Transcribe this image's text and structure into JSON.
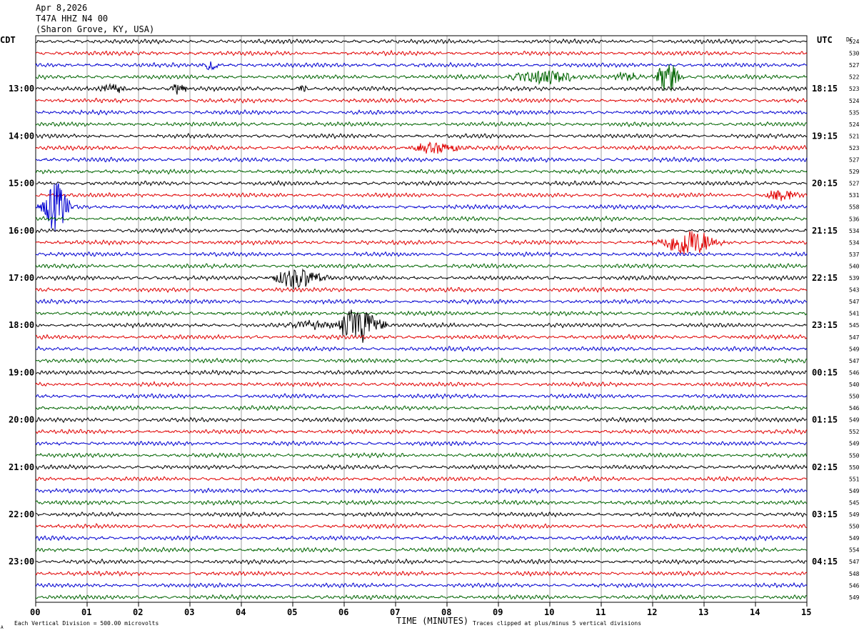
{
  "header": {
    "date": "Apr 8,2026",
    "station": "T47A HHZ N4 00",
    "location": "(Sharon Grove, KY, USA)"
  },
  "labels": {
    "left_tz": "CDT",
    "right_tz": "UTC",
    "dc": "DC",
    "xlabel": "TIME (MINUTES)",
    "footer_left": "Each Vertical Division =  500.00 microvolts",
    "footer_right": "Traces clipped at plus/minus 5 vertical divisions",
    "corner_mark": "A"
  },
  "chart_data": {
    "type": "line",
    "subtype": "helicorder",
    "x_ticks": [
      "00",
      "01",
      "02",
      "03",
      "04",
      "05",
      "06",
      "07",
      "08",
      "09",
      "10",
      "11",
      "12",
      "13",
      "14",
      "15"
    ],
    "xlim": [
      0,
      15
    ],
    "left_hour_labels": [
      "13:00",
      "14:00",
      "15:00",
      "16:00",
      "17:00",
      "18:00",
      "19:00",
      "20:00",
      "21:00",
      "22:00",
      "23:00"
    ],
    "right_hour_labels": [
      "18:15",
      "19:15",
      "20:15",
      "21:15",
      "22:15",
      "23:15",
      "00:15",
      "01:15",
      "02:15",
      "03:15",
      "04:15"
    ],
    "hour_label_first_row": 4,
    "rows_per_hour": 4,
    "dc_values": [
      524,
      530,
      527,
      522,
      523,
      524,
      535,
      524,
      521,
      523,
      527,
      529,
      527,
      531,
      558,
      536,
      534,
      534,
      537,
      540,
      539,
      543,
      547,
      541,
      545,
      547,
      549,
      547,
      546,
      540,
      550,
      546,
      549,
      552,
      549,
      550,
      550,
      551,
      549,
      545,
      549,
      550,
      549,
      554,
      547,
      548,
      546,
      549
    ],
    "trace_colors": [
      "#000000",
      "#e00000",
      "#0000d0",
      "#006400"
    ],
    "vertical_division_microvolts": 500.0,
    "clip_divisions": 5,
    "events": [
      {
        "row": 2,
        "minute": 3.4,
        "amp": 1.6,
        "dur": 0.3
      },
      {
        "row": 3,
        "minute": 9.9,
        "amp": 2.2,
        "dur": 1.5
      },
      {
        "row": 3,
        "minute": 11.5,
        "amp": 1.6,
        "dur": 0.6
      },
      {
        "row": 3,
        "minute": 12.3,
        "amp": 6.0,
        "dur": 0.5
      },
      {
        "row": 4,
        "minute": 1.5,
        "amp": 1.4,
        "dur": 0.6
      },
      {
        "row": 4,
        "minute": 2.8,
        "amp": 2.0,
        "dur": 0.4
      },
      {
        "row": 4,
        "minute": 5.2,
        "amp": 1.4,
        "dur": 0.3
      },
      {
        "row": 9,
        "minute": 7.8,
        "amp": 1.8,
        "dur": 1.2
      },
      {
        "row": 14,
        "minute": 0.4,
        "amp": 8.0,
        "dur": 0.6
      },
      {
        "row": 13,
        "minute": 14.5,
        "amp": 2.0,
        "dur": 0.8
      },
      {
        "row": 17,
        "minute": 12.7,
        "amp": 4.5,
        "dur": 1.2
      },
      {
        "row": 20,
        "minute": 5.1,
        "amp": 3.5,
        "dur": 1.1
      },
      {
        "row": 24,
        "minute": 6.3,
        "amp": 6.0,
        "dur": 1.0
      },
      {
        "row": 24,
        "minute": 5.4,
        "amp": 1.4,
        "dur": 1.2
      }
    ]
  }
}
